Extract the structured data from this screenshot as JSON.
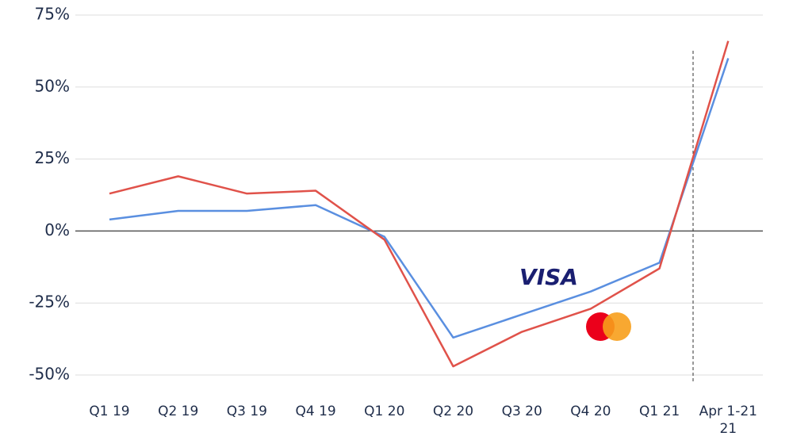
{
  "chart_data": {
    "type": "line",
    "categories": [
      "Q1 19",
      "Q2 19",
      "Q3 19",
      "Q4 19",
      "Q1 20",
      "Q2 20",
      "Q3 20",
      "Q4 20",
      "Q1 21",
      "Apr 1-21 21"
    ],
    "series": [
      {
        "name": "VISA",
        "color": "#5a8fe0",
        "values": [
          4,
          7,
          7,
          9,
          -2,
          -37,
          -29,
          -21,
          -11,
          60
        ]
      },
      {
        "color": "#e0524a",
        "values": [
          13,
          19,
          13,
          14,
          -3,
          -47,
          -35,
          -27,
          -13,
          66
        ]
      }
    ],
    "ylim": [
      -50,
      75
    ],
    "yticks": [
      {
        "value": -50,
        "label": "-50%"
      },
      {
        "value": -25,
        "label": "-25%"
      },
      {
        "value": 0,
        "label": "0%"
      },
      {
        "value": 25,
        "label": "25%"
      },
      {
        "value": 50,
        "label": "50%"
      },
      {
        "value": 75,
        "label": "75%"
      }
    ],
    "grid": true
  }
}
